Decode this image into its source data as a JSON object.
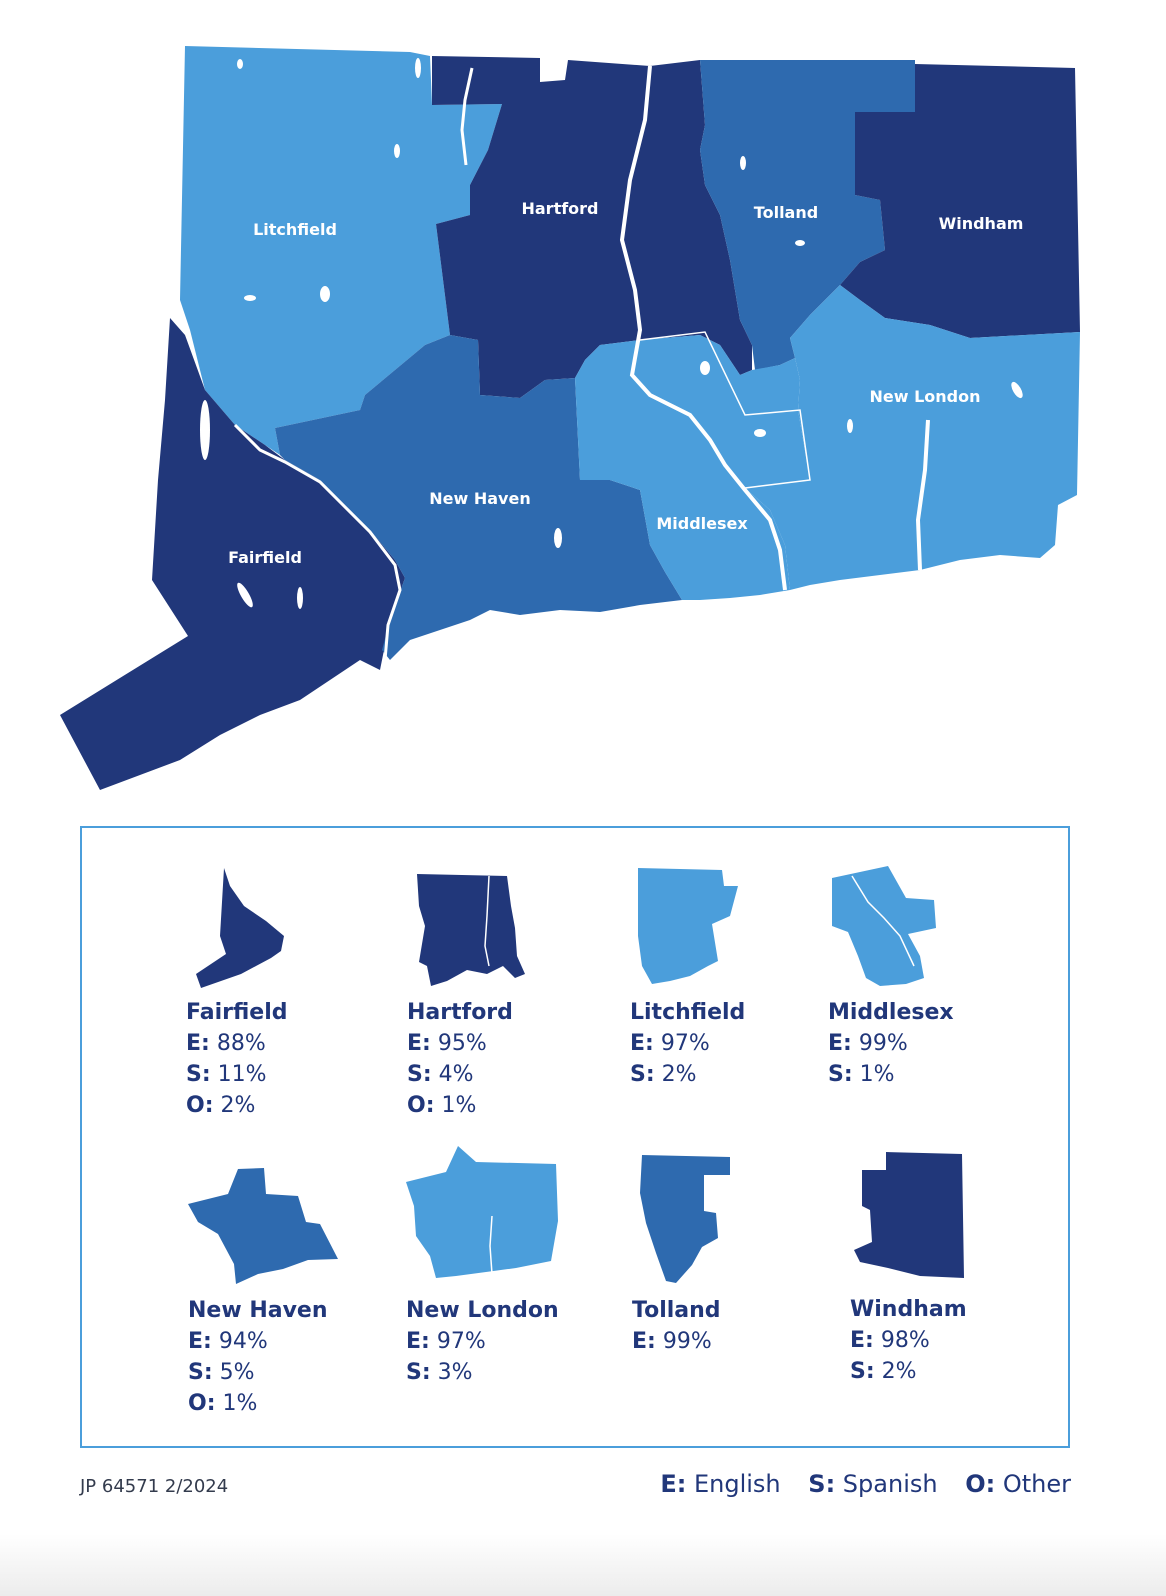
{
  "colors": {
    "dark": "#21377a",
    "medium": "#2e6aaf",
    "light": "#4b9edb",
    "text": "#21377a"
  },
  "map": {
    "counties": [
      {
        "id": "litchfield",
        "label": "Litchfield"
      },
      {
        "id": "hartford",
        "label": "Hartford"
      },
      {
        "id": "tolland",
        "label": "Tolland"
      },
      {
        "id": "windham",
        "label": "Windham"
      },
      {
        "id": "fairfield",
        "label": "Fairfield"
      },
      {
        "id": "new_haven",
        "label": "New Haven"
      },
      {
        "id": "middlesex",
        "label": "Middlesex"
      },
      {
        "id": "new_london",
        "label": "New London"
      }
    ]
  },
  "legend": {
    "cards": [
      {
        "name": "Fairfield",
        "shade": "dark",
        "stats": [
          {
            "k": "E:",
            "v": " 88%"
          },
          {
            "k": "S:",
            "v": " 11%"
          },
          {
            "k": "O:",
            "v": " 2%"
          }
        ]
      },
      {
        "name": "Hartford",
        "shade": "dark",
        "stats": [
          {
            "k": "E:",
            "v": " 95%"
          },
          {
            "k": "S:",
            "v": " 4%"
          },
          {
            "k": "O:",
            "v": " 1%"
          }
        ]
      },
      {
        "name": "Litchfield",
        "shade": "light",
        "stats": [
          {
            "k": "E:",
            "v": " 97%"
          },
          {
            "k": "S:",
            "v": " 2%"
          }
        ]
      },
      {
        "name": "Middlesex",
        "shade": "light",
        "stats": [
          {
            "k": "E:",
            "v": " 99%"
          },
          {
            "k": "S:",
            "v": " 1%"
          }
        ]
      },
      {
        "name": "New Haven",
        "shade": "medium",
        "stats": [
          {
            "k": "E:",
            "v": " 94%"
          },
          {
            "k": "S:",
            "v": " 5%"
          },
          {
            "k": "O:",
            "v": " 1%"
          }
        ]
      },
      {
        "name": "New London",
        "shade": "light",
        "stats": [
          {
            "k": "E:",
            "v": " 97%"
          },
          {
            "k": "S:",
            "v": " 3%"
          }
        ]
      },
      {
        "name": "Tolland",
        "shade": "medium",
        "stats": [
          {
            "k": "E:",
            "v": " 99%"
          }
        ]
      },
      {
        "name": "Windham",
        "shade": "dark",
        "stats": [
          {
            "k": "E:",
            "v": " 98%"
          },
          {
            "k": "S:",
            "v": " 2%"
          }
        ]
      }
    ]
  },
  "footer": {
    "code": "JP 64571 2/2024",
    "key": [
      {
        "k": "E:",
        "v": " English"
      },
      {
        "k": "S:",
        "v": " Spanish"
      },
      {
        "k": "O:",
        "v": " Other"
      }
    ]
  }
}
